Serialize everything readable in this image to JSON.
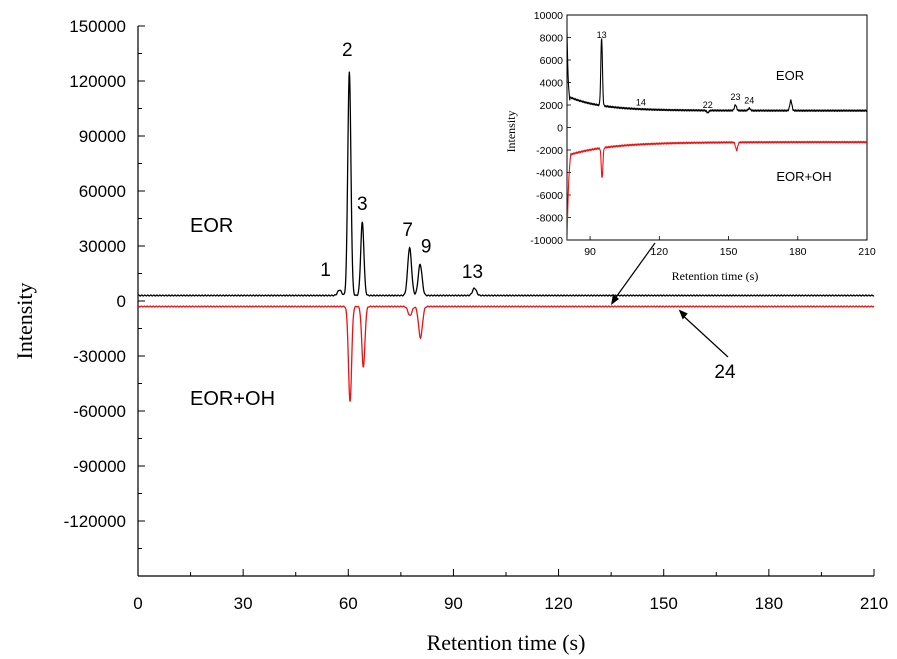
{
  "chart_data": [
    {
      "type": "line",
      "xlabel": "Retention time (s)",
      "ylabel": "Intensity",
      "xlim": [
        0,
        210
      ],
      "ylim": [
        -150000,
        150000
      ],
      "xticks": [
        "0",
        "30",
        "60",
        "90",
        "120",
        "150",
        "180",
        "210"
      ],
      "yticks": [
        "150000",
        "120000",
        "90000",
        "60000",
        "30000",
        "0",
        "-30000",
        "-60000",
        "-90000",
        "-120000"
      ],
      "series": [
        {
          "name": "EOR",
          "color": "#000000",
          "baseline": 3000,
          "peaks": [
            {
              "x": 57.5,
              "y": 6000,
              "label": "1"
            },
            {
              "x": 60.3,
              "y": 125000,
              "label": "2"
            },
            {
              "x": 64.0,
              "y": 43000,
              "label": "3"
            },
            {
              "x": 77.5,
              "y": 29000,
              "label": "7"
            },
            {
              "x": 80.5,
              "y": 20000,
              "label": "9"
            },
            {
              "x": 96.0,
              "y": 7000,
              "label": "13"
            }
          ]
        },
        {
          "name": "EOR+OH",
          "color": "#ee1111",
          "baseline": -3000,
          "peaks": [
            {
              "x": 60.5,
              "y": -55000
            },
            {
              "x": 64.3,
              "y": -36000
            },
            {
              "x": 77.6,
              "y": -8000
            },
            {
              "x": 80.6,
              "y": -20000
            }
          ]
        }
      ],
      "annotations": [
        {
          "text": "24",
          "x": 154,
          "y": -3000
        }
      ]
    },
    {
      "type": "line",
      "inset": true,
      "xlabel": "Retention time (s)",
      "ylabel": "Intensity",
      "xlim": [
        80,
        210
      ],
      "ylim": [
        -10000,
        10000
      ],
      "xticks": [
        "90",
        "120",
        "150",
        "180",
        "210"
      ],
      "yticks": [
        "10000",
        "8000",
        "6000",
        "4000",
        "2000",
        "0",
        "-2000",
        "-4000",
        "-6000",
        "-8000",
        "-10000"
      ],
      "series": [
        {
          "name": "EOR",
          "color": "#000000",
          "peaks": [
            {
              "x": 95.0,
              "y": 7600,
              "label": "13"
            },
            {
              "x": 112.0,
              "y": 1600,
              "label": "14"
            },
            {
              "x": 141.0,
              "y": 1400,
              "label": "22"
            },
            {
              "x": 153.0,
              "y": 2100,
              "label": "23"
            },
            {
              "x": 159.0,
              "y": 1800,
              "label": "24"
            },
            {
              "x": 177.0,
              "y": 2500
            }
          ]
        },
        {
          "name": "EOR+OH",
          "color": "#ee1111",
          "peaks": [
            {
              "x": 95.2,
              "y": -4200
            },
            {
              "x": 153.5,
              "y": -2200
            }
          ]
        }
      ]
    }
  ]
}
